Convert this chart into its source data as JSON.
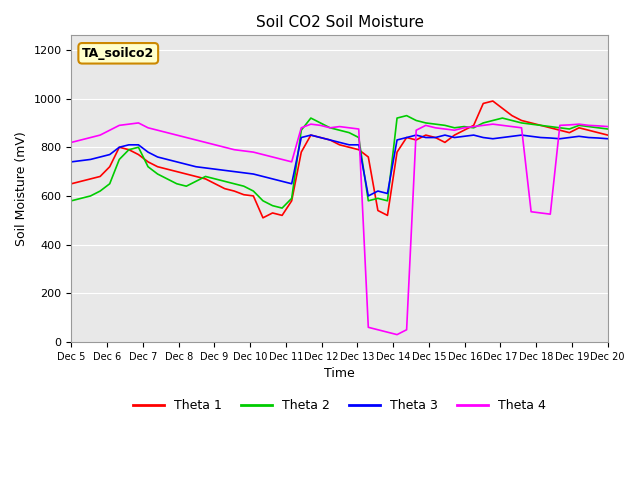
{
  "title": "Soil CO2 Soil Moisture",
  "xlabel": "Time",
  "ylabel": "Soil Moisture (mV)",
  "annotation": "TA_soilco2",
  "ylim": [
    0,
    1260
  ],
  "yticks": [
    0,
    200,
    400,
    600,
    800,
    1000,
    1200
  ],
  "colors": {
    "Theta 1": "#ff0000",
    "Theta 2": "#00cc00",
    "Theta 3": "#0000ff",
    "Theta 4": "#ff00ff"
  },
  "background_color": "#e8e8e8",
  "x_labels": [
    "Dec 5",
    "Dec 6",
    "Dec 7",
    "Dec 8",
    "Dec 9",
    "Dec 10",
    "Dec 11",
    "Dec 12",
    "Dec 13",
    "Dec 14",
    "Dec 15",
    "Dec 16",
    "Dec 17",
    "Dec 18",
    "Dec 19",
    "Dec 20"
  ],
  "theta1": [
    650,
    660,
    670,
    680,
    720,
    800,
    790,
    770,
    740,
    720,
    710,
    700,
    690,
    680,
    670,
    650,
    630,
    620,
    605,
    600,
    510,
    530,
    520,
    580,
    780,
    850,
    840,
    830,
    810,
    800,
    790,
    760,
    540,
    520,
    780,
    840,
    830,
    850,
    840,
    820,
    850,
    870,
    890,
    980,
    990,
    960,
    930,
    910,
    900,
    890,
    880,
    870,
    860,
    880,
    870,
    860,
    850
  ],
  "theta2": [
    580,
    590,
    600,
    620,
    650,
    750,
    790,
    800,
    720,
    690,
    670,
    650,
    640,
    660,
    680,
    670,
    660,
    650,
    640,
    620,
    580,
    560,
    550,
    590,
    870,
    920,
    900,
    880,
    870,
    860,
    840,
    580,
    590,
    580,
    920,
    930,
    910,
    900,
    895,
    890,
    880,
    885,
    880,
    900,
    910,
    920,
    910,
    900,
    895,
    890,
    885,
    880,
    875,
    890,
    885,
    880,
    875
  ],
  "theta3": [
    740,
    745,
    750,
    760,
    770,
    800,
    810,
    810,
    780,
    760,
    750,
    740,
    730,
    720,
    715,
    710,
    705,
    700,
    695,
    690,
    680,
    670,
    660,
    650,
    840,
    850,
    840,
    830,
    820,
    810,
    810,
    600,
    620,
    610,
    830,
    840,
    850,
    840,
    840,
    850,
    840,
    845,
    850,
    840,
    835,
    840,
    845,
    850,
    845,
    840,
    838,
    835,
    840,
    845,
    840,
    838,
    835
  ],
  "theta4": [
    820,
    830,
    840,
    850,
    870,
    890,
    895,
    900,
    880,
    870,
    860,
    850,
    840,
    830,
    820,
    810,
    800,
    790,
    785,
    780,
    770,
    760,
    750,
    740,
    880,
    895,
    890,
    880,
    885,
    880,
    875,
    60,
    50,
    40,
    30,
    50,
    870,
    890,
    880,
    875,
    870,
    880,
    885,
    890,
    895,
    890,
    885,
    880,
    535,
    530,
    525,
    890,
    892,
    895,
    890,
    888,
    885
  ]
}
